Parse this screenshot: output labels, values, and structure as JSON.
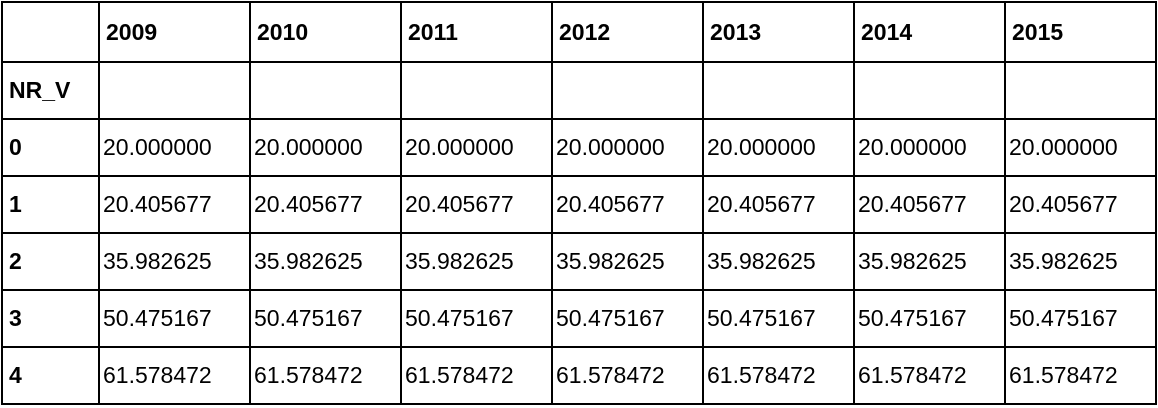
{
  "table": {
    "columns": [
      "2009",
      "2010",
      "2011",
      "2012",
      "2013",
      "2014",
      "2015"
    ],
    "index_name": "NR_V",
    "rows": [
      {
        "label": "0",
        "cells": [
          "20.000000",
          "20.000000",
          "20.000000",
          "20.000000",
          "20.000000",
          "20.000000",
          "20.000000"
        ]
      },
      {
        "label": "1",
        "cells": [
          "20.405677",
          "20.405677",
          "20.405677",
          "20.405677",
          "20.405677",
          "20.405677",
          "20.405677"
        ]
      },
      {
        "label": "2",
        "cells": [
          "35.982625",
          "35.982625",
          "35.982625",
          "35.982625",
          "35.982625",
          "35.982625",
          "35.982625"
        ]
      },
      {
        "label": "3",
        "cells": [
          "50.475167",
          "50.475167",
          "50.475167",
          "50.475167",
          "50.475167",
          "50.475167",
          "50.475167"
        ]
      },
      {
        "label": "4",
        "cells": [
          "61.578472",
          "61.578472",
          "61.578472",
          "61.578472",
          "61.578472",
          "61.578472",
          "61.578472"
        ]
      }
    ]
  }
}
